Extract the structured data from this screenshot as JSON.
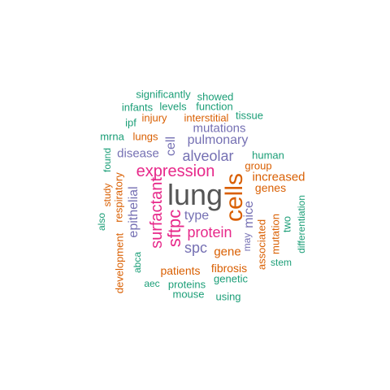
{
  "palette": {
    "gray": "#555555",
    "green": "#1b9e77",
    "orange": "#d95f02",
    "purple": "#7570b3",
    "pink": "#e7298a"
  },
  "words": [
    {
      "text": "lung",
      "color": "gray"
    },
    {
      "text": "cells",
      "color": "orange"
    },
    {
      "text": "expression",
      "color": "pink"
    },
    {
      "text": "surfactant",
      "color": "pink"
    },
    {
      "text": "sftpc",
      "color": "pink"
    },
    {
      "text": "protein",
      "color": "pink"
    },
    {
      "text": "alveolar",
      "color": "purple"
    },
    {
      "text": "pulmonary",
      "color": "purple"
    },
    {
      "text": "mutations",
      "color": "purple"
    },
    {
      "text": "epithelial",
      "color": "purple"
    },
    {
      "text": "spc",
      "color": "purple"
    },
    {
      "text": "disease",
      "color": "purple"
    },
    {
      "text": "type",
      "color": "purple"
    },
    {
      "text": "mice",
      "color": "purple"
    },
    {
      "text": "cell",
      "color": "purple"
    },
    {
      "text": "increased",
      "color": "orange"
    },
    {
      "text": "genes",
      "color": "orange"
    },
    {
      "text": "gene",
      "color": "orange"
    },
    {
      "text": "fibrosis",
      "color": "orange"
    },
    {
      "text": "patients",
      "color": "orange"
    },
    {
      "text": "injury",
      "color": "orange"
    },
    {
      "text": "interstitial",
      "color": "orange"
    },
    {
      "text": "lungs",
      "color": "orange"
    },
    {
      "text": "group",
      "color": "orange"
    },
    {
      "text": "respiratory",
      "color": "orange"
    },
    {
      "text": "development",
      "color": "orange"
    },
    {
      "text": "study",
      "color": "orange"
    },
    {
      "text": "associated",
      "color": "orange"
    },
    {
      "text": "mutation",
      "color": "orange"
    },
    {
      "text": "may",
      "color": "purple"
    },
    {
      "text": "significantly",
      "color": "green"
    },
    {
      "text": "showed",
      "color": "green"
    },
    {
      "text": "function",
      "color": "green"
    },
    {
      "text": "infants",
      "color": "green"
    },
    {
      "text": "levels",
      "color": "green"
    },
    {
      "text": "tissue",
      "color": "green"
    },
    {
      "text": "ipf",
      "color": "green"
    },
    {
      "text": "mrna",
      "color": "green"
    },
    {
      "text": "found",
      "color": "green"
    },
    {
      "text": "human",
      "color": "green"
    },
    {
      "text": "also",
      "color": "green"
    },
    {
      "text": "abca",
      "color": "green"
    },
    {
      "text": "two",
      "color": "green"
    },
    {
      "text": "differentiation",
      "color": "green"
    },
    {
      "text": "stem",
      "color": "green"
    },
    {
      "text": "genetic",
      "color": "green"
    },
    {
      "text": "aec",
      "color": "green"
    },
    {
      "text": "proteins",
      "color": "green"
    },
    {
      "text": "mouse",
      "color": "green"
    },
    {
      "text": "using",
      "color": "green"
    }
  ]
}
